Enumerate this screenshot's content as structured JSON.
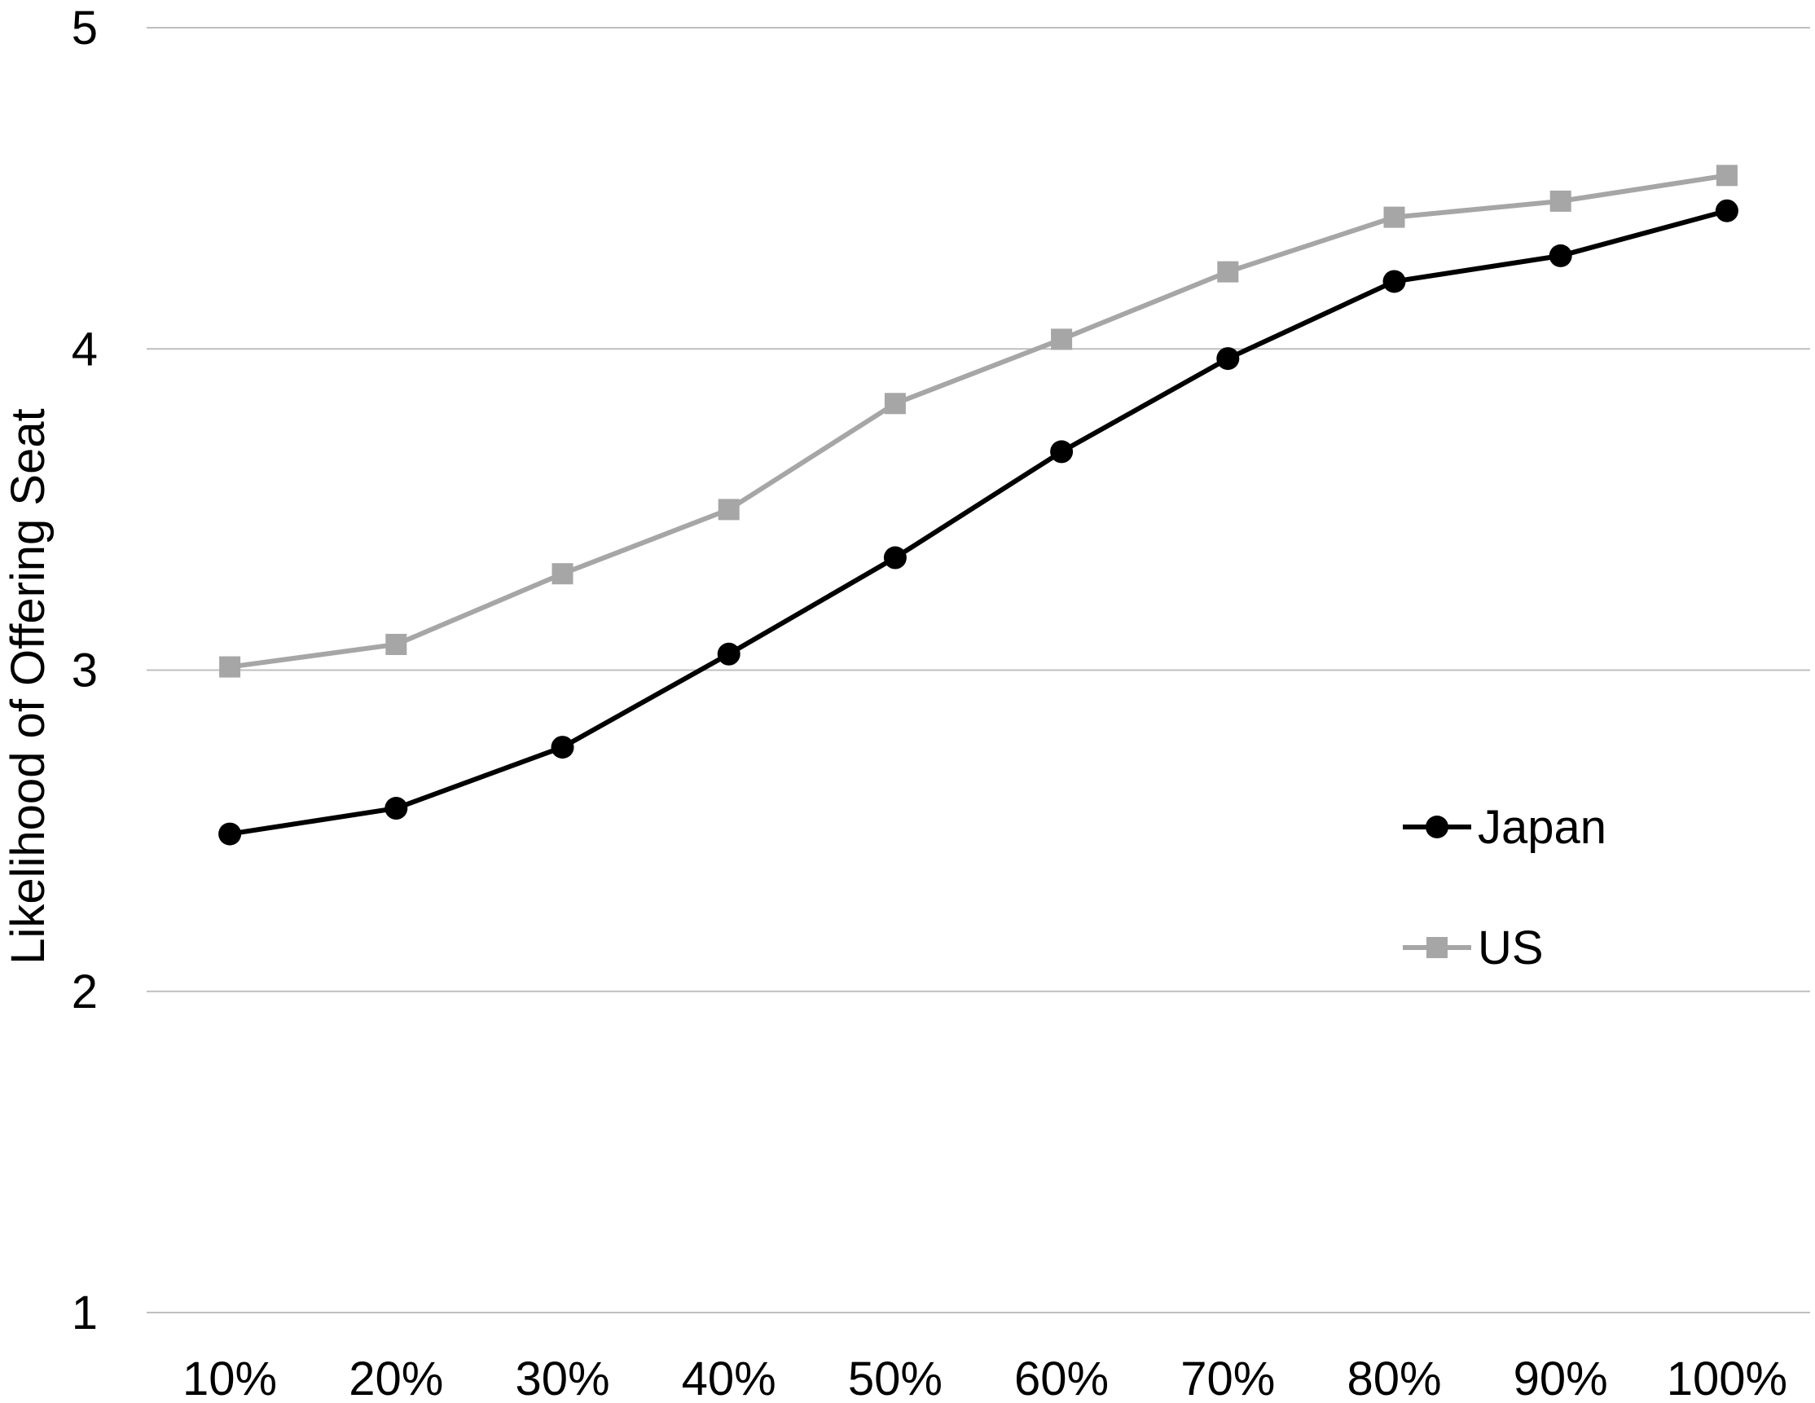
{
  "chart_data": {
    "type": "line",
    "categories": [
      "10%",
      "20%",
      "30%",
      "40%",
      "50%",
      "60%",
      "70%",
      "80%",
      "90%",
      "100%"
    ],
    "series": [
      {
        "name": "Japan",
        "color": "#000000",
        "marker": "circle",
        "values": [
          2.49,
          2.57,
          2.76,
          3.05,
          3.35,
          3.68,
          3.97,
          4.21,
          4.29,
          4.43
        ]
      },
      {
        "name": "US",
        "color": "#a6a6a6",
        "marker": "square",
        "values": [
          3.01,
          3.08,
          3.3,
          3.5,
          3.83,
          4.03,
          4.24,
          4.41,
          4.46,
          4.54
        ]
      }
    ],
    "title": "",
    "xlabel": "",
    "ylabel": "Likelihood of Offering Seat",
    "ylim": [
      1,
      5
    ],
    "yticks": [
      1,
      2,
      3,
      4,
      5
    ],
    "grid": true,
    "legend_position": "right",
    "gridline_color": "#bfbfbf"
  }
}
